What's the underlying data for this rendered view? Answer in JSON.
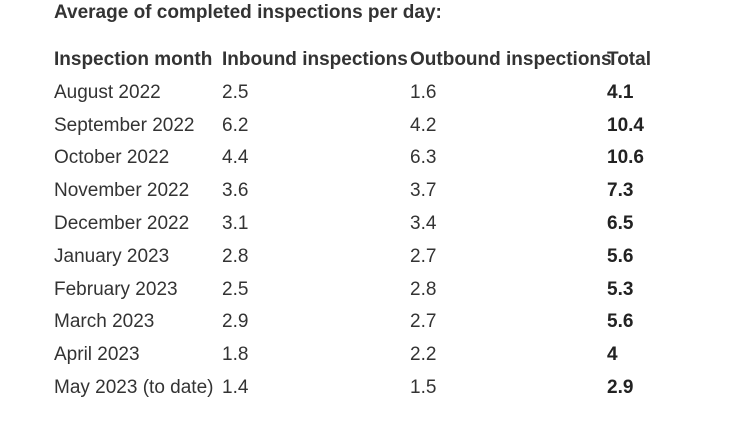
{
  "title": "Average of completed inspections per day:",
  "table": {
    "headers": [
      "Inspection month",
      "Inbound inspections",
      "Outbound inspections",
      "Total"
    ],
    "rows": [
      [
        "August 2022",
        "2.5",
        "1.6",
        "4.1"
      ],
      [
        "September 2022",
        "6.2",
        "4.2",
        "10.4"
      ],
      [
        "October 2022",
        "4.4",
        "6.3",
        "10.6"
      ],
      [
        "November 2022",
        "3.6",
        "3.7",
        "7.3"
      ],
      [
        "December 2022",
        "3.1",
        "3.4",
        "6.5"
      ],
      [
        "January 2023",
        "2.8",
        "2.7",
        "5.6"
      ],
      [
        "February 2023",
        "2.5",
        "2.8",
        "5.3"
      ],
      [
        "March 2023",
        "2.9",
        "2.7",
        "5.6"
      ],
      [
        "April 2023",
        "1.8",
        "2.2",
        "4"
      ],
      [
        "May 2023 (to date)",
        "1.4",
        "1.5",
        "2.9"
      ]
    ]
  }
}
